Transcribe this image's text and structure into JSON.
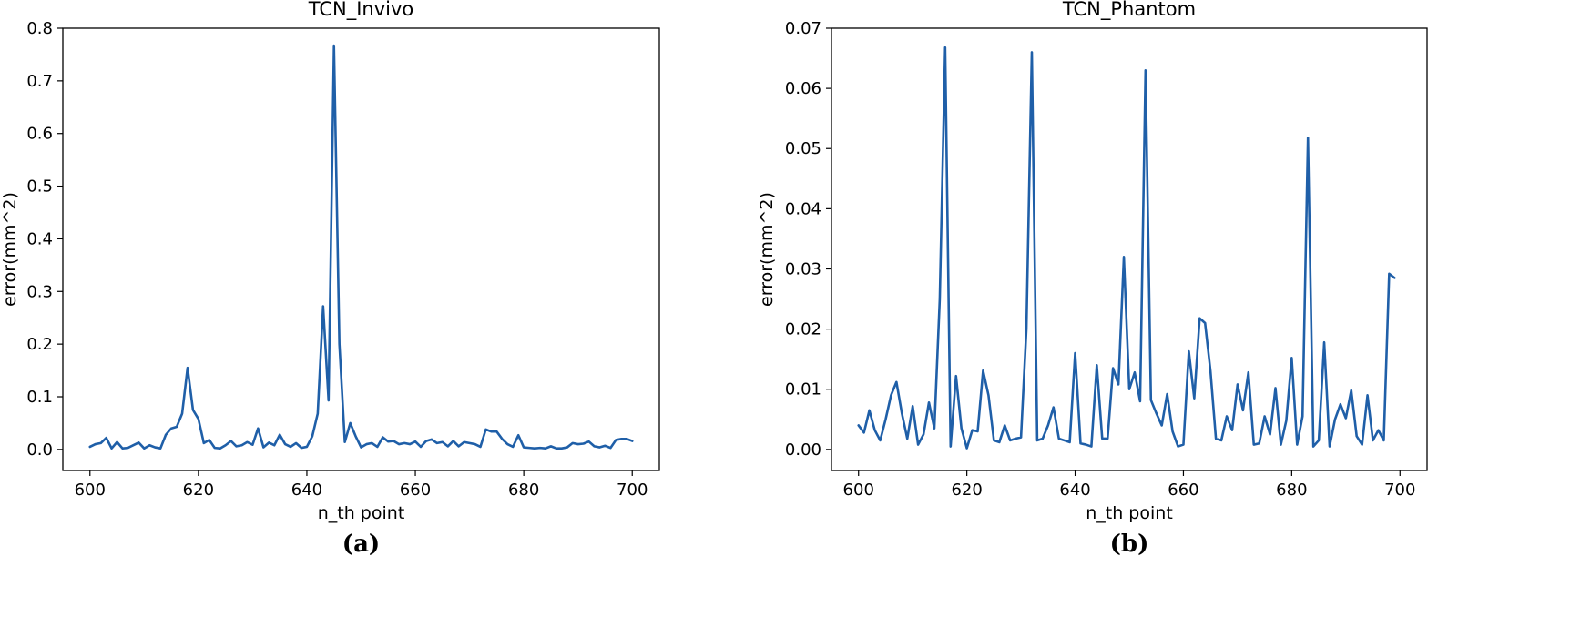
{
  "chart_data": [
    {
      "type": "line",
      "title": "TCN_Invivo",
      "xlabel": "n_th point",
      "ylabel": "error(mm^2)",
      "panel_label": "(a)",
      "xlim": [
        595,
        705
      ],
      "ylim": [
        -0.04,
        0.8
      ],
      "xticks": [
        600,
        620,
        640,
        660,
        680,
        700
      ],
      "yticks": [
        0.0,
        0.1,
        0.2,
        0.3,
        0.4,
        0.5,
        0.6,
        0.7,
        0.8
      ],
      "ytick_labels": [
        "0.0",
        "0.1",
        "0.2",
        "0.3",
        "0.4",
        "0.5",
        "0.6",
        "0.7",
        "0.8"
      ],
      "color": "#1f5fa8",
      "x_start": 600,
      "x_step": 1,
      "values": [
        0.005,
        0.01,
        0.012,
        0.022,
        0.002,
        0.014,
        0.002,
        0.003,
        0.008,
        0.013,
        0.002,
        0.008,
        0.004,
        0.002,
        0.028,
        0.04,
        0.043,
        0.068,
        0.155,
        0.075,
        0.058,
        0.012,
        0.018,
        0.003,
        0.002,
        0.008,
        0.016,
        0.006,
        0.008,
        0.014,
        0.009,
        0.04,
        0.004,
        0.013,
        0.008,
        0.028,
        0.01,
        0.005,
        0.012,
        0.003,
        0.005,
        0.025,
        0.068,
        0.272,
        0.093,
        0.767,
        0.2,
        0.014,
        0.05,
        0.025,
        0.004,
        0.01,
        0.012,
        0.005,
        0.023,
        0.015,
        0.016,
        0.01,
        0.012,
        0.01,
        0.015,
        0.005,
        0.016,
        0.019,
        0.012,
        0.014,
        0.006,
        0.016,
        0.006,
        0.014,
        0.012,
        0.01,
        0.005,
        0.038,
        0.034,
        0.034,
        0.02,
        0.01,
        0.005,
        0.027,
        0.004,
        0.003,
        0.002,
        0.003,
        0.002,
        0.006,
        0.002,
        0.002,
        0.004,
        0.012,
        0.01,
        0.011,
        0.015,
        0.006,
        0.004,
        0.007,
        0.003,
        0.018,
        0.02,
        0.02,
        0.016
      ]
    },
    {
      "type": "line",
      "title": "TCN_Phantom",
      "xlabel": "n_th point",
      "ylabel": "error(mm^2)",
      "panel_label": "(b)",
      "xlim": [
        595,
        705
      ],
      "ylim": [
        -0.0035,
        0.07
      ],
      "xticks": [
        600,
        620,
        640,
        660,
        680,
        700
      ],
      "yticks": [
        0.0,
        0.01,
        0.02,
        0.03,
        0.04,
        0.05,
        0.06,
        0.07
      ],
      "ytick_labels": [
        "0.00",
        "0.01",
        "0.02",
        "0.03",
        "0.04",
        "0.05",
        "0.06",
        "0.07"
      ],
      "color": "#1f5fa8",
      "x_start": 600,
      "x_step": 1,
      "values": [
        0.004,
        0.0028,
        0.0065,
        0.0032,
        0.0015,
        0.005,
        0.009,
        0.0112,
        0.006,
        0.0018,
        0.0072,
        0.0008,
        0.0025,
        0.0078,
        0.0035,
        0.025,
        0.0668,
        0.0005,
        0.0122,
        0.0035,
        0.0002,
        0.0032,
        0.003,
        0.0131,
        0.009,
        0.0015,
        0.0012,
        0.004,
        0.0015,
        0.0018,
        0.002,
        0.02,
        0.066,
        0.0015,
        0.0018,
        0.004,
        0.007,
        0.0018,
        0.0015,
        0.0012,
        0.016,
        0.001,
        0.0008,
        0.0005,
        0.014,
        0.0018,
        0.0018,
        0.0135,
        0.0108,
        0.032,
        0.01,
        0.0128,
        0.008,
        0.063,
        0.0082,
        0.006,
        0.004,
        0.0092,
        0.003,
        0.0005,
        0.0008,
        0.0163,
        0.0085,
        0.0218,
        0.021,
        0.013,
        0.0018,
        0.0015,
        0.0055,
        0.0032,
        0.0108,
        0.0065,
        0.0128,
        0.0008,
        0.001,
        0.0055,
        0.0025,
        0.0102,
        0.0008,
        0.0048,
        0.0152,
        0.0008,
        0.0055,
        0.0518,
        0.0005,
        0.0015,
        0.0178,
        0.0005,
        0.005,
        0.0075,
        0.0052,
        0.0098,
        0.0022,
        0.0008,
        0.009,
        0.0015,
        0.0032,
        0.0015,
        0.0292,
        0.0285
      ]
    }
  ]
}
